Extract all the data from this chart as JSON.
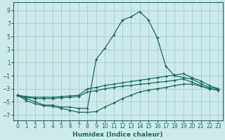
{
  "xlabel": "Humidex (Indice chaleur)",
  "x_ticks": [
    0,
    1,
    2,
    3,
    4,
    5,
    6,
    7,
    8,
    9,
    10,
    11,
    12,
    13,
    14,
    15,
    16,
    17,
    18,
    19,
    20,
    21,
    22,
    23
  ],
  "y_ticks": [
    -7,
    -5,
    -3,
    -1,
    1,
    3,
    5,
    7,
    9
  ],
  "xlim": [
    -0.5,
    23.5
  ],
  "ylim": [
    -7.8,
    10.2
  ],
  "bg_color": "#cdeaea",
  "grid_color": "#a8cccc",
  "line_color": "#1a6b5a",
  "series": [
    {
      "x": [
        0,
        1,
        2,
        3,
        4,
        5,
        6,
        7,
        8,
        9,
        10,
        11,
        12,
        13,
        14,
        15,
        16,
        17,
        18,
        19,
        20,
        21,
        22,
        23
      ],
      "y": [
        -4.0,
        -4.5,
        -5.0,
        -5.5,
        -5.5,
        -5.8,
        -5.8,
        -6.0,
        -6.0,
        1.5,
        3.2,
        5.2,
        7.5,
        8.0,
        8.8,
        7.5,
        4.8,
        0.4,
        -1.0,
        -1.3,
        -1.5,
        -2.2,
        -2.8,
        -3.0
      ]
    },
    {
      "x": [
        0,
        1,
        2,
        3,
        4,
        5,
        6,
        7,
        8,
        9,
        10,
        11,
        12,
        13,
        14,
        15,
        16,
        17,
        18,
        19,
        20,
        21,
        22,
        23
      ],
      "y": [
        -4.0,
        -4.2,
        -4.3,
        -4.3,
        -4.3,
        -4.2,
        -4.1,
        -4.0,
        -3.0,
        -2.8,
        -2.5,
        -2.3,
        -2.1,
        -1.9,
        -1.7,
        -1.5,
        -1.3,
        -1.1,
        -0.9,
        -0.7,
        -1.3,
        -1.8,
        -2.5,
        -3.0
      ]
    },
    {
      "x": [
        0,
        1,
        2,
        3,
        4,
        5,
        6,
        7,
        8,
        9,
        10,
        11,
        12,
        13,
        14,
        15,
        16,
        17,
        18,
        19,
        20,
        21,
        22,
        23
      ],
      "y": [
        -4.0,
        -4.3,
        -4.5,
        -4.5,
        -4.5,
        -4.4,
        -4.3,
        -4.2,
        -3.5,
        -3.3,
        -3.0,
        -2.8,
        -2.6,
        -2.5,
        -2.3,
        -2.2,
        -2.0,
        -1.9,
        -1.7,
        -1.5,
        -2.0,
        -2.5,
        -3.0,
        -3.2
      ]
    },
    {
      "x": [
        0,
        1,
        2,
        3,
        4,
        5,
        6,
        7,
        8,
        9,
        10,
        11,
        12,
        13,
        14,
        15,
        16,
        17,
        18,
        19,
        20,
        21,
        22,
        23
      ],
      "y": [
        -4.0,
        -4.8,
        -5.3,
        -5.6,
        -5.7,
        -6.0,
        -6.3,
        -6.6,
        -6.6,
        -6.5,
        -5.8,
        -5.2,
        -4.5,
        -4.0,
        -3.5,
        -3.2,
        -3.0,
        -2.8,
        -2.5,
        -2.3,
        -2.3,
        -2.6,
        -3.0,
        -3.2
      ]
    }
  ]
}
